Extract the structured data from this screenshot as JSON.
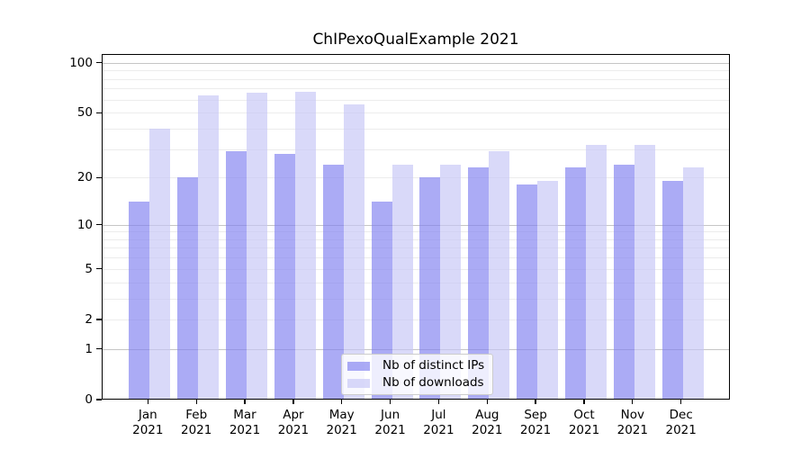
{
  "chart_data": {
    "type": "bar",
    "title": "ChIPexoQualExample 2021",
    "scale": "log1p",
    "categories": [
      "Jan 2021",
      "Feb 2021",
      "Mar 2021",
      "Apr 2021",
      "May 2021",
      "Jun 2021",
      "Jul 2021",
      "Aug 2021",
      "Sep 2021",
      "Oct 2021",
      "Nov 2021",
      "Dec 2021"
    ],
    "series": [
      {
        "name": "Nb of distinct IPs",
        "color": "rgba(127,127,240,0.66)",
        "values": [
          14,
          20,
          29,
          28,
          24,
          14,
          20,
          23,
          18,
          23,
          24,
          19
        ]
      },
      {
        "name": "Nb of downloads",
        "color": "rgba(197,197,246,0.66)",
        "values": [
          40,
          64,
          66,
          67,
          56,
          24,
          24,
          29,
          19,
          32,
          32,
          23
        ]
      }
    ],
    "yticks": [
      0,
      1,
      2,
      5,
      10,
      20,
      50,
      100
    ],
    "grid_minor_values": [
      2,
      3,
      4,
      5,
      6,
      7,
      8,
      9,
      20,
      30,
      40,
      50,
      60,
      70,
      80,
      90
    ],
    "grid_major_values": [
      1,
      10,
      100
    ],
    "ylim": [
      0,
      113
    ],
    "xlabel": "",
    "ylabel": "",
    "legend_position": "lower center",
    "grid": "on",
    "colors": {
      "grid_minor": "#ececec",
      "grid_major": "#c5c5c5",
      "axis": "#000000",
      "background": "#ffffff"
    }
  }
}
